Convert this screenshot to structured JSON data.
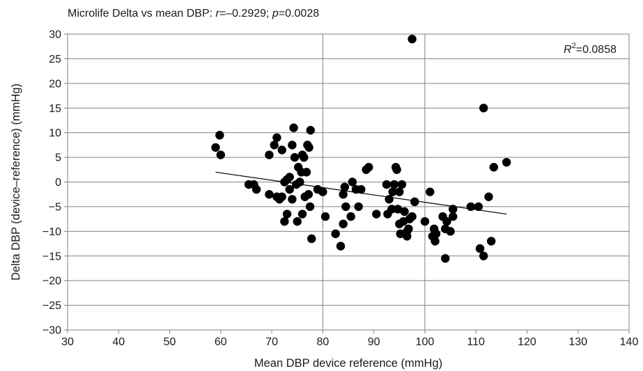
{
  "chart_data": {
    "type": "scatter",
    "title": {
      "prefix": "Microlife Delta vs mean DBP: ",
      "r_symbol": "r",
      "r_value": "=–0.2929; ",
      "p_symbol": "p",
      "p_value": "=0.0028"
    },
    "xlabel": "Mean DBP device reference (mmHg)",
    "ylabel": "Delta DBP (device–reference) (mmHg)",
    "xlim": [
      30,
      140
    ],
    "ylim": [
      -30,
      30
    ],
    "x_ticks": [
      "30",
      "40",
      "50",
      "60",
      "70",
      "80",
      "90",
      "100",
      "110",
      "120",
      "130",
      "140"
    ],
    "y_ticks": [
      "30",
      "25",
      "20",
      "15",
      "10",
      "5",
      "0",
      "−5",
      "−10",
      "−15",
      "−20",
      "−25",
      "−30"
    ],
    "grid": "horizontal lines at each y tick; vertical lines at x = 80 and x = 100",
    "r_squared": {
      "symbol": "R",
      "exponent": "2",
      "value": "=0.0858"
    },
    "trendline": {
      "x": [
        59,
        116
      ],
      "y": [
        2.0,
        -6.5
      ]
    },
    "point_color": "#000000",
    "points": [
      [
        59.0,
        7.0
      ],
      [
        59.8,
        9.5
      ],
      [
        60.0,
        5.5
      ],
      [
        65.5,
        -0.5
      ],
      [
        66.5,
        -0.5
      ],
      [
        67.0,
        -1.5
      ],
      [
        69.5,
        5.5
      ],
      [
        69.5,
        -2.5
      ],
      [
        70.5,
        7.5
      ],
      [
        71.0,
        9.0
      ],
      [
        71.0,
        -3.0
      ],
      [
        71.5,
        -3.5
      ],
      [
        72.0,
        6.5
      ],
      [
        72.0,
        -3.0
      ],
      [
        72.5,
        0.0
      ],
      [
        72.5,
        -8.0
      ],
      [
        73.0,
        0.5
      ],
      [
        73.0,
        -6.5
      ],
      [
        73.5,
        1.0
      ],
      [
        73.5,
        -1.5
      ],
      [
        74.0,
        -3.5
      ],
      [
        74.0,
        7.5
      ],
      [
        74.3,
        11.0
      ],
      [
        74.5,
        5.0
      ],
      [
        74.8,
        -0.5
      ],
      [
        75.0,
        -8.0
      ],
      [
        75.2,
        3.0
      ],
      [
        75.5,
        0.0
      ],
      [
        75.8,
        2.0
      ],
      [
        76.0,
        -6.5
      ],
      [
        76.0,
        5.5
      ],
      [
        76.3,
        5.0
      ],
      [
        76.5,
        -3.0
      ],
      [
        76.8,
        2.0
      ],
      [
        77.0,
        7.5
      ],
      [
        77.2,
        -2.5
      ],
      [
        77.3,
        7.0
      ],
      [
        77.5,
        -5.0
      ],
      [
        77.6,
        10.5
      ],
      [
        77.8,
        -11.5
      ],
      [
        79.0,
        -1.5
      ],
      [
        80.0,
        -2.0
      ],
      [
        80.5,
        -7.0
      ],
      [
        82.5,
        -10.5
      ],
      [
        83.5,
        -13.0
      ],
      [
        84.0,
        -8.5
      ],
      [
        84.0,
        -2.5
      ],
      [
        84.3,
        -1.0
      ],
      [
        84.5,
        -5.0
      ],
      [
        85.5,
        -7.0
      ],
      [
        85.8,
        0.0
      ],
      [
        86.5,
        -1.5
      ],
      [
        87.0,
        -5.0
      ],
      [
        87.5,
        -1.5
      ],
      [
        88.5,
        2.5
      ],
      [
        89.0,
        3.0
      ],
      [
        90.5,
        -6.5
      ],
      [
        92.5,
        -0.5
      ],
      [
        92.7,
        -6.5
      ],
      [
        93.0,
        -3.5
      ],
      [
        93.5,
        -5.5
      ],
      [
        93.7,
        -2.0
      ],
      [
        94.0,
        -0.5
      ],
      [
        94.3,
        3.0
      ],
      [
        94.5,
        2.5
      ],
      [
        94.7,
        -5.5
      ],
      [
        95.0,
        -2.0
      ],
      [
        95.0,
        -8.5
      ],
      [
        95.2,
        -10.5
      ],
      [
        95.5,
        -0.5
      ],
      [
        95.8,
        -8.0
      ],
      [
        96.0,
        -6.0
      ],
      [
        96.5,
        -10.0
      ],
      [
        96.5,
        -11.0
      ],
      [
        96.8,
        -9.5
      ],
      [
        97.0,
        -7.5
      ],
      [
        97.5,
        29.0
      ],
      [
        97.5,
        -7.0
      ],
      [
        98.0,
        -4.0
      ],
      [
        100.0,
        -8.0
      ],
      [
        101.0,
        -2.0
      ],
      [
        101.5,
        -11.0
      ],
      [
        101.8,
        -9.5
      ],
      [
        102.0,
        -12.0
      ],
      [
        102.2,
        -10.5
      ],
      [
        103.5,
        -7.0
      ],
      [
        104.0,
        -9.5
      ],
      [
        104.0,
        -15.5
      ],
      [
        104.3,
        -8.0
      ],
      [
        105.0,
        -10.0
      ],
      [
        105.5,
        -5.5
      ],
      [
        105.5,
        -7.0
      ],
      [
        109.0,
        -5.0
      ],
      [
        110.5,
        -5.0
      ],
      [
        110.8,
        -13.5
      ],
      [
        111.5,
        15.0
      ],
      [
        111.5,
        -15.0
      ],
      [
        112.5,
        -3.0
      ],
      [
        113.0,
        -12.0
      ],
      [
        113.5,
        3.0
      ],
      [
        116.0,
        4.0
      ]
    ]
  }
}
